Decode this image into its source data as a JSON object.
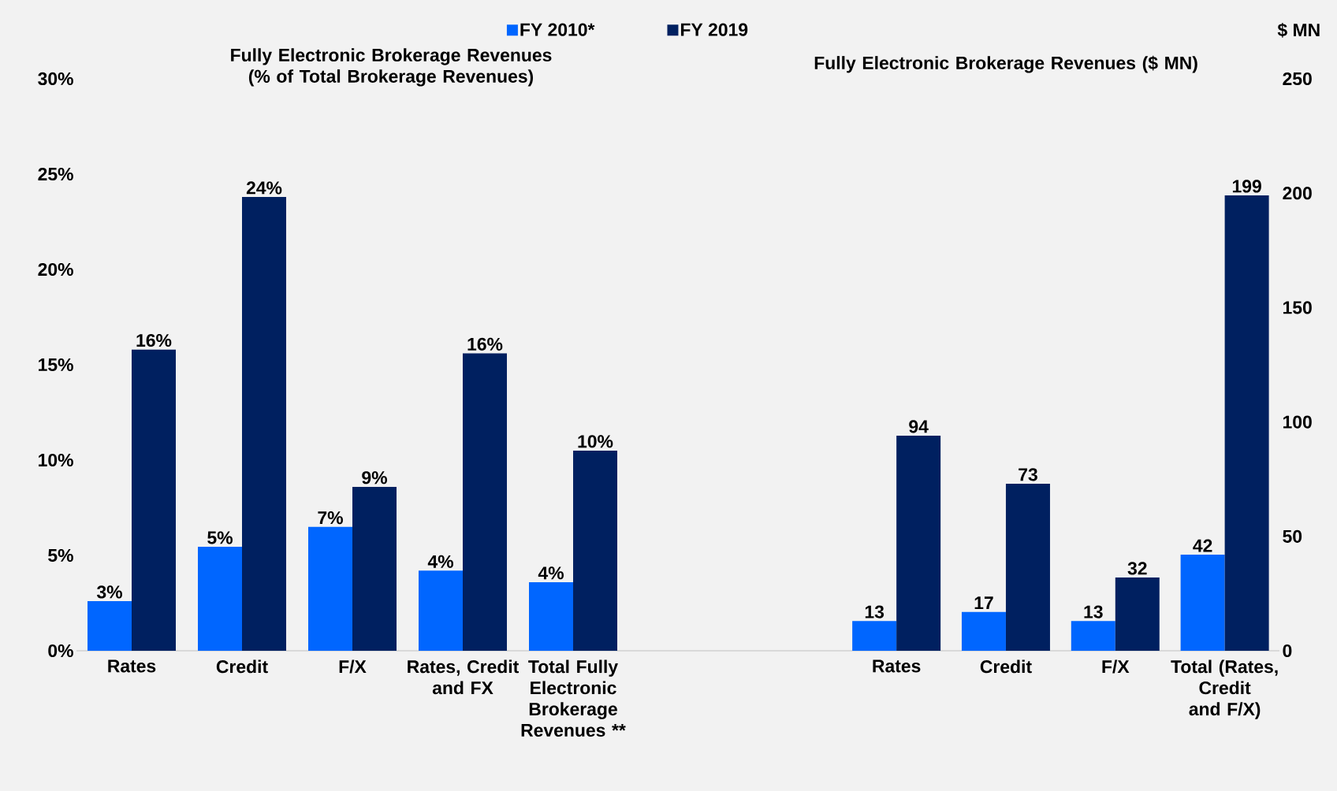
{
  "chart_data": [
    {
      "type": "bar",
      "title": "Fully Electronic Brokerage Revenues (% of Total Brokerage Revenues)",
      "categories": [
        "Rates",
        "Credit",
        "F/X",
        "Rates, Credit and FX",
        "Total Fully Electronic Brokerage Revenues **"
      ],
      "series": [
        {
          "name": "FY 2010*",
          "color": "#0066ff",
          "values": [
            2.6,
            5.45,
            6.5,
            4.2,
            3.6
          ],
          "value_labels": [
            "3%",
            "5%",
            "7%",
            "4%",
            "4%"
          ]
        },
        {
          "name": "FY 2019",
          "color": "#002060",
          "values": [
            15.8,
            23.8,
            8.6,
            15.6,
            10.5
          ],
          "value_labels": [
            "16%",
            "24%",
            "9%",
            "16%",
            "10%"
          ]
        }
      ],
      "ylim": [
        0,
        30
      ],
      "yticks": [
        {
          "value": 0,
          "label": "0%"
        },
        {
          "value": 5,
          "label": "5%"
        },
        {
          "value": 10,
          "label": "10%"
        },
        {
          "value": 15,
          "label": "15%"
        },
        {
          "value": 20,
          "label": "20%"
        },
        {
          "value": 25,
          "label": "25%"
        },
        {
          "value": 30,
          "label": "30%"
        }
      ],
      "legend": "top"
    },
    {
      "type": "bar",
      "title": "Fully Electronic Brokerage Revenues ($ MN)",
      "ylabel": "$ MN",
      "categories": [
        "Rates",
        "Credit",
        "F/X",
        "Total (Rates, Credit and F/X)"
      ],
      "series": [
        {
          "color": "#0066ff",
          "values": [
            13,
            17,
            13,
            42
          ]
        },
        {
          "color": "#002060",
          "values": [
            94,
            73,
            32,
            199
          ]
        }
      ],
      "ylim": [
        0,
        250
      ],
      "yticks": [
        0,
        50,
        100,
        150,
        200,
        250
      ],
      "data_labels": true
    }
  ]
}
